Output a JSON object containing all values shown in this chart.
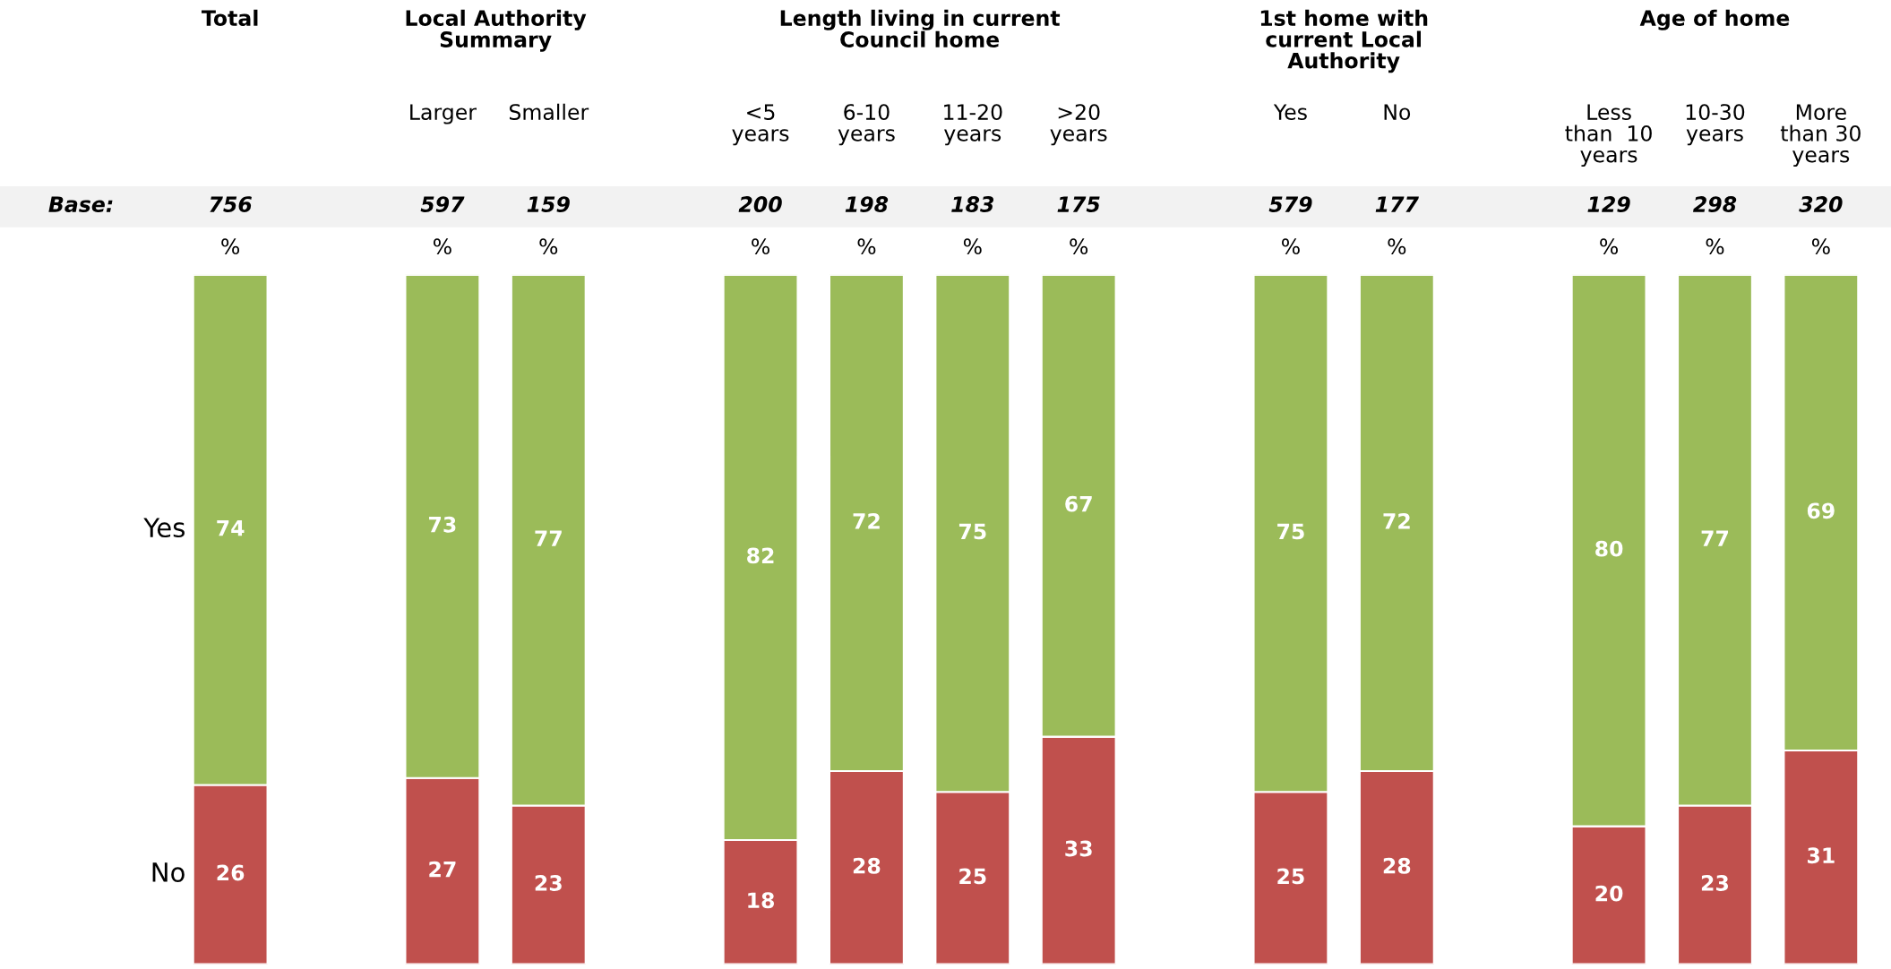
{
  "chart_data": {
    "type": "bar",
    "stacked": true,
    "data_labels": true,
    "legend": false,
    "grid": false,
    "categories": [
      null,
      null,
      "Larger",
      "Smaller",
      null,
      "<5\nyears",
      "6-10\nyears",
      "11-20\nyears",
      ">20\nyears",
      null,
      "Yes",
      "No",
      null,
      "Less\nthan  10\nyears",
      "10-30\nyears",
      "More\nthan 30\nyears"
    ],
    "series": [
      {
        "name": "No",
        "color": "#c0504d",
        "values": [
          26,
          null,
          27,
          23,
          null,
          18,
          28,
          25,
          33,
          null,
          25,
          28,
          null,
          20,
          23,
          31
        ]
      },
      {
        "name": "Yes",
        "color": "#9bbb59",
        "values": [
          74,
          null,
          73,
          77,
          null,
          82,
          72,
          75,
          67,
          null,
          75,
          72,
          null,
          80,
          77,
          69
        ]
      }
    ],
    "annotations": [
      "Total",
      "Local Authority\nSummary",
      "Length living in current\nCouncil home",
      "1st home with\ncurrent Local\nAuthority",
      "Age of home",
      "Base:",
      "756",
      "597",
      "159",
      "200",
      "198",
      "183",
      "175",
      "579",
      "177",
      "129",
      "298",
      "320",
      "%",
      "%",
      "%",
      "%",
      "%",
      "%",
      "%",
      "%",
      "%",
      "%",
      "%",
      "%"
    ]
  }
}
